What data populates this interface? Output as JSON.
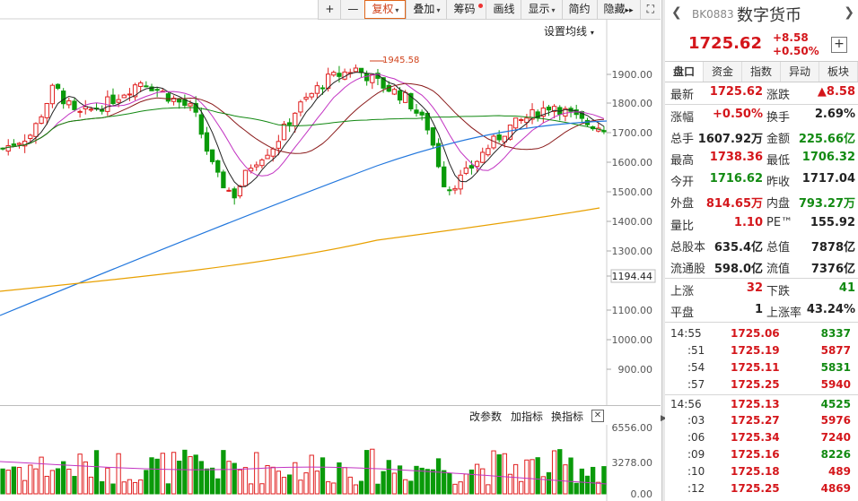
{
  "toolbar": {
    "items": [
      "+",
      "—",
      "复权",
      "叠加",
      "筹码",
      "画线",
      "显示",
      "简约",
      "隐藏",
      "▸▸",
      "⛶"
    ]
  },
  "chart": {
    "ma_setting": "设置均线",
    "peak_label": "1945.58",
    "y_labels": [
      "1900.00",
      "1800.00",
      "1700.00",
      "1600.00",
      "1500.00",
      "1400.00",
      "1300.00",
      "1194.44",
      "1100.00",
      "1000.00",
      "900.00"
    ],
    "sub_labels": [
      "6556.00",
      "3278.00",
      "0.00"
    ],
    "sub_toolbar": {
      "params": "改参数",
      "add": "加指标",
      "switch": "换指标",
      "close": "✕"
    }
  },
  "panel": {
    "code": "BK0883",
    "name": "数字货币",
    "price": "1725.62",
    "change": "+8.58",
    "change_pct": "+0.50%",
    "tabs": [
      "盘口",
      "资金",
      "指数",
      "异动",
      "板块"
    ],
    "rows": [
      {
        "l1": "最新",
        "v1": "1725.62",
        "c1": "red",
        "l2": "涨跌",
        "v2": "▲8.58",
        "c2": "red"
      },
      {
        "l1": "涨幅",
        "v1": "+0.50%",
        "c1": "red",
        "l2": "换手",
        "v2": "2.69%",
        "c2": "dark"
      },
      {
        "l1": "总手",
        "v1": "1607.92万",
        "c1": "dark",
        "l2": "金额",
        "v2": "225.66亿",
        "c2": "green"
      },
      {
        "l1": "最高",
        "v1": "1738.36",
        "c1": "red",
        "l2": "最低",
        "v2": "1706.32",
        "c2": "green"
      },
      {
        "l1": "今开",
        "v1": "1716.62",
        "c1": "green",
        "l2": "昨收",
        "v2": "1717.04",
        "c2": "dark"
      },
      {
        "l1": "外盘",
        "v1": "814.65万",
        "c1": "red",
        "l2": "内盘",
        "v2": "793.27万",
        "c2": "green"
      },
      {
        "l1": "量比",
        "v1": "1.10",
        "c1": "red",
        "l2": "PE™",
        "v2": "155.92",
        "c2": "dark"
      },
      {
        "l1": "总股本",
        "v1": "635.4亿",
        "c1": "dark",
        "l2": "总值",
        "v2": "7878亿",
        "c2": "dark"
      },
      {
        "l1": "流通股",
        "v1": "598.0亿",
        "c1": "dark",
        "l2": "流值",
        "v2": "7376亿",
        "c2": "dark"
      },
      {
        "l1": "上涨",
        "v1": "32",
        "c1": "red",
        "l2": "下跌",
        "v2": "41",
        "c2": "green"
      },
      {
        "l1": "平盘",
        "v1": "1",
        "c1": "dark",
        "l2": "上涨率",
        "v2": "43.24%",
        "c2": "dark"
      }
    ],
    "ticks": [
      {
        "t": "14:55",
        "p": "1725.06",
        "q": "8337",
        "c": "green",
        "sub": false
      },
      {
        "t": ":51",
        "p": "1725.19",
        "q": "5877",
        "c": "red",
        "sub": true
      },
      {
        "t": ":54",
        "p": "1725.11",
        "q": "5831",
        "c": "green",
        "sub": true
      },
      {
        "t": ":57",
        "p": "1725.25",
        "q": "5940",
        "c": "red",
        "sub": true
      },
      {
        "t": "14:56",
        "p": "1725.13",
        "q": "4525",
        "c": "green",
        "sub": false
      },
      {
        "t": ":03",
        "p": "1725.27",
        "q": "5976",
        "c": "red",
        "sub": true
      },
      {
        "t": ":06",
        "p": "1725.34",
        "q": "7240",
        "c": "red",
        "sub": true
      },
      {
        "t": ":09",
        "p": "1725.16",
        "q": "8226",
        "c": "green",
        "sub": true
      },
      {
        "t": ":10",
        "p": "1725.18",
        "q": "489",
        "c": "red",
        "sub": true
      },
      {
        "t": ":12",
        "p": "1725.25",
        "q": "4869",
        "c": "red",
        "sub": true
      }
    ]
  }
}
